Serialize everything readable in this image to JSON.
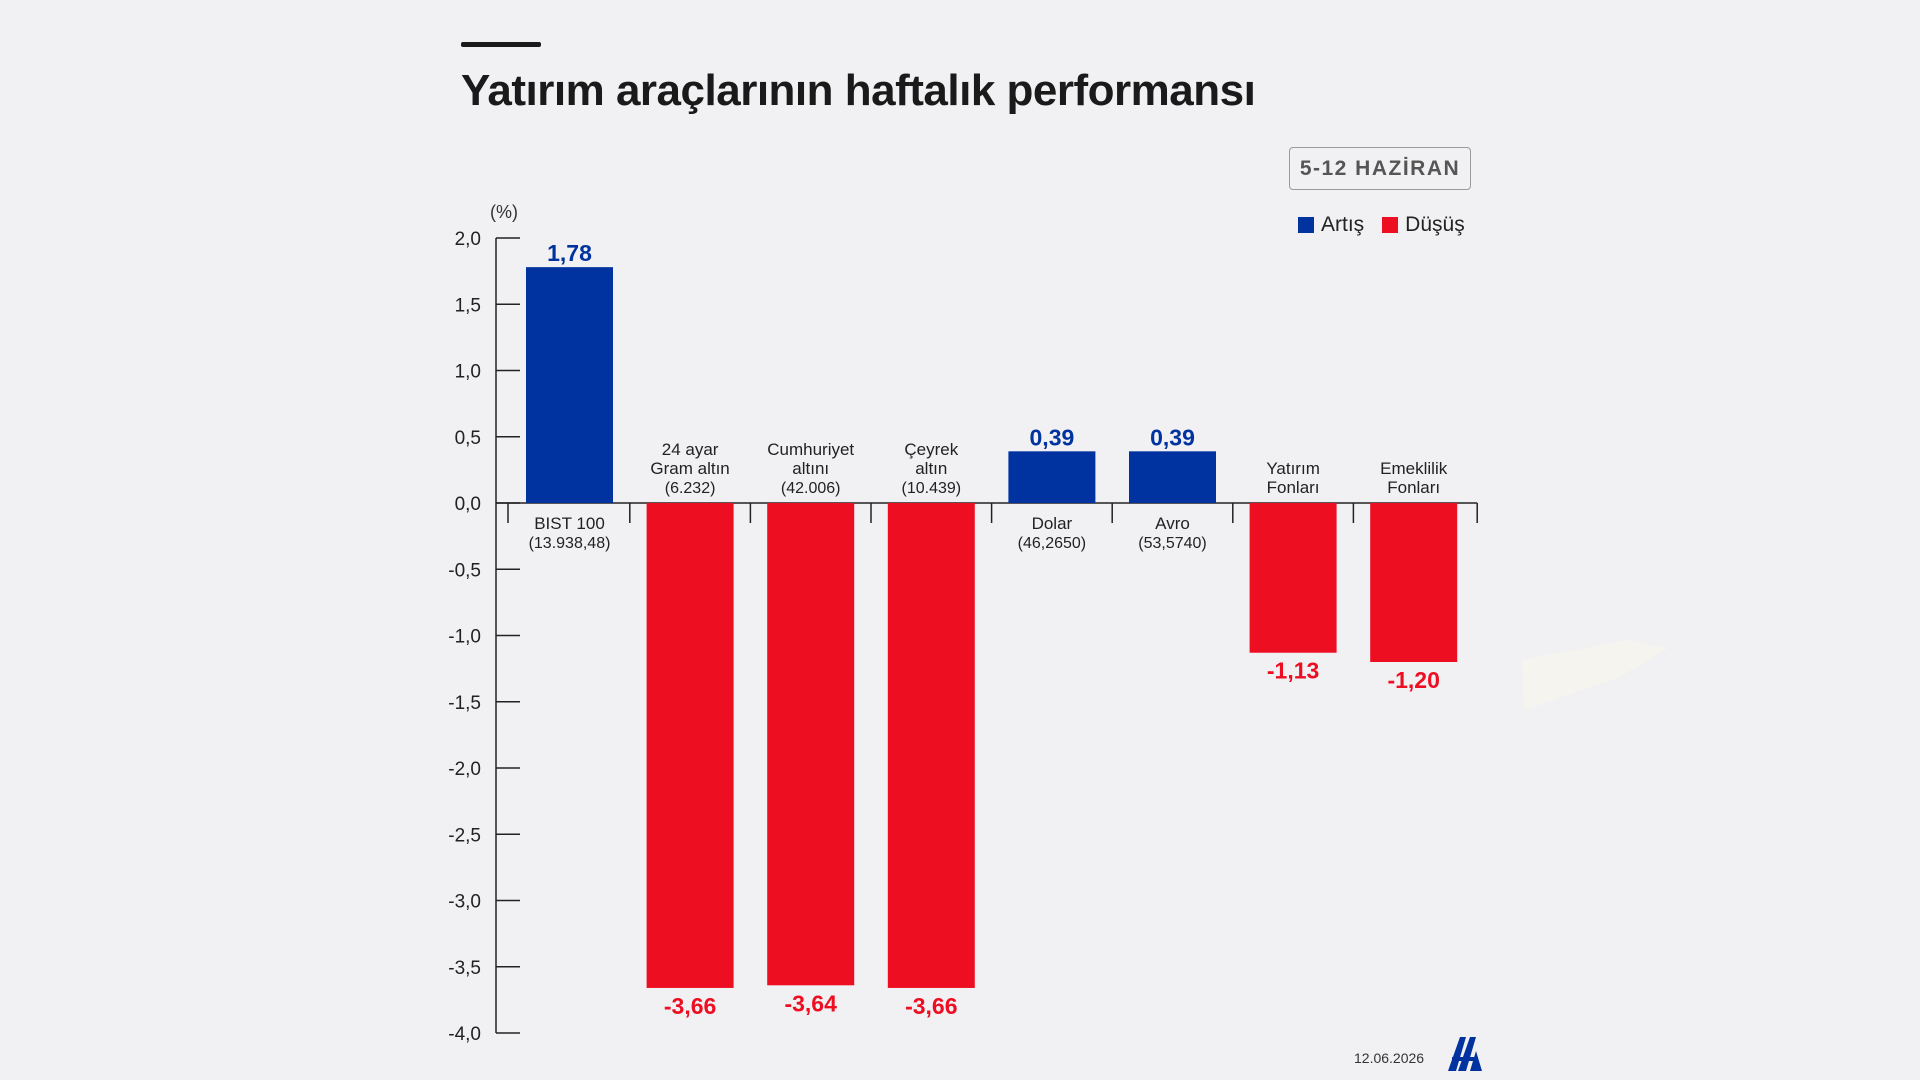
{
  "title": "Yatırım araçlarının haftalık performansı",
  "date_range": "5-12 HAZİRAN",
  "legend": {
    "increase_label": "Artış",
    "decrease_label": "Düşüş"
  },
  "colors": {
    "increase": "#0033a0",
    "decrease": "#ee0e22",
    "axis": "#222222",
    "text": "#1a1a1a"
  },
  "footer_date": "12.06.2026",
  "logo_icon": "aa-logo-icon",
  "chart_data": {
    "type": "bar",
    "ylabel": "(%)",
    "ylim": [
      -4.0,
      2.0
    ],
    "yticks": [
      2.0,
      1.5,
      1.0,
      0.5,
      0.0,
      -0.5,
      -1.0,
      -1.5,
      -2.0,
      -2.5,
      -3.0,
      -3.5,
      -4.0
    ],
    "ytick_labels": [
      "2,0",
      "1,5",
      "1,0",
      "0,5",
      "0,0",
      "-0,5",
      "-1,0",
      "-1,5",
      "-2,0",
      "-2,5",
      "-3,0",
      "-3,5",
      "-4,0"
    ],
    "categories": [
      {
        "name_lines": [
          "BIST 100"
        ],
        "sub": "(13.938,48)"
      },
      {
        "name_lines": [
          "24 ayar",
          "Gram altın"
        ],
        "sub": "(6.232)"
      },
      {
        "name_lines": [
          "Cumhuriyet",
          "altını"
        ],
        "sub": "(42.006)"
      },
      {
        "name_lines": [
          "Çeyrek",
          "altın"
        ],
        "sub": "(10.439)"
      },
      {
        "name_lines": [
          "Dolar"
        ],
        "sub": "(46,2650)"
      },
      {
        "name_lines": [
          "Avro"
        ],
        "sub": "(53,5740)"
      },
      {
        "name_lines": [
          "Yatırım",
          "Fonları"
        ],
        "sub": ""
      },
      {
        "name_lines": [
          "Emeklilik",
          "Fonları"
        ],
        "sub": ""
      }
    ],
    "values": [
      1.78,
      -3.66,
      -3.64,
      -3.66,
      0.39,
      0.39,
      -1.13,
      -1.2
    ],
    "value_labels": [
      "1,78",
      "-3,66",
      "-3,64",
      "-3,66",
      "0,39",
      "0,39",
      "-1,13",
      "-1,20"
    ],
    "grid": false,
    "legend_position": "top-right"
  }
}
